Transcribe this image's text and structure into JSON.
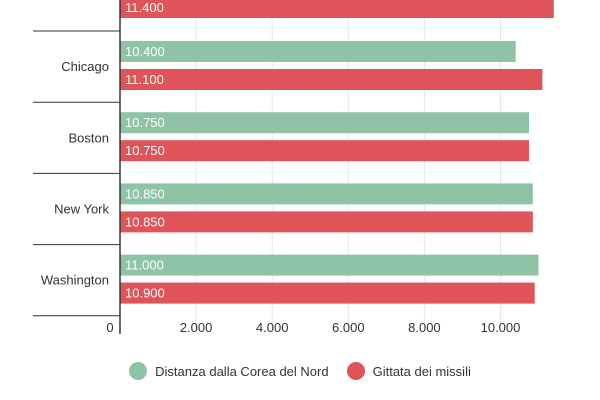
{
  "chart_data": {
    "type": "bar",
    "orientation": "horizontal",
    "categories": [
      "Chicago",
      "Boston",
      "New York",
      "Washington"
    ],
    "partial_top": {
      "series": "Gittata dei missili",
      "value": 11400,
      "label": "11.400"
    },
    "series": [
      {
        "name": "Distanza dalla Corea del Nord",
        "color": "#8fc3a6",
        "values": [
          10400,
          10750,
          10850,
          11000
        ],
        "labels": [
          "10.400",
          "10.750",
          "10.850",
          "11.000"
        ]
      },
      {
        "name": "Gittata dei missili",
        "color": "#de5458",
        "values": [
          11100,
          10750,
          10850,
          10900
        ],
        "labels": [
          "11.100",
          "10.750",
          "10.850",
          "10.900"
        ]
      }
    ],
    "xlim": [
      0,
      12000
    ],
    "x_ticks": [
      0,
      2000,
      4000,
      6000,
      8000,
      10000
    ],
    "x_tick_labels": [
      "0",
      "2.000",
      "4.000",
      "6.000",
      "8.000",
      "10.000"
    ],
    "grid": true,
    "legend_position": "bottom"
  }
}
